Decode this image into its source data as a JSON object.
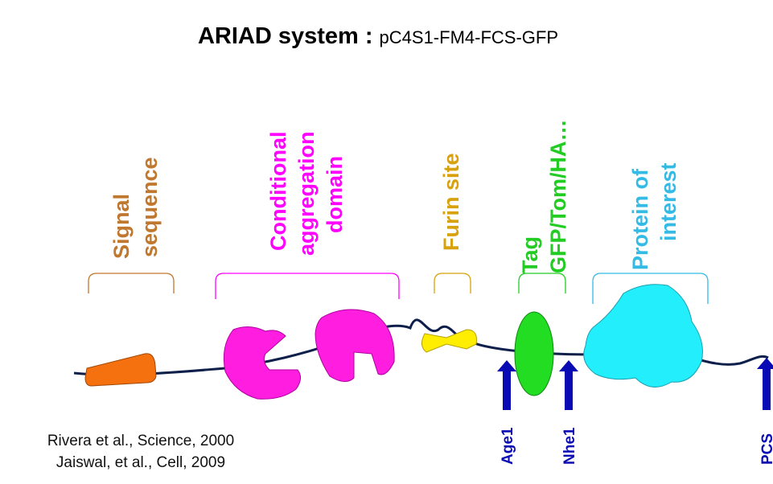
{
  "title": {
    "main": "ARIAD system :",
    "construct": "pC4S1-FM4-FCS-GFP"
  },
  "domains": [
    {
      "lines": [
        "Signal",
        "sequence"
      ]
    },
    {
      "lines": [
        "Conditional",
        "aggregation",
        "domain"
      ]
    },
    {
      "lines": [
        "Furin site"
      ]
    },
    {
      "lines": [
        "Tag",
        "GFP/Tom/HA…"
      ]
    },
    {
      "lines": [
        "Protein of",
        "interest"
      ]
    }
  ],
  "sites": [
    "Age1",
    "Nhe1",
    "PCS"
  ],
  "references": [
    "Rivera et al., Science, 2000",
    "Jaiswal, et al., Cell, 2009"
  ]
}
